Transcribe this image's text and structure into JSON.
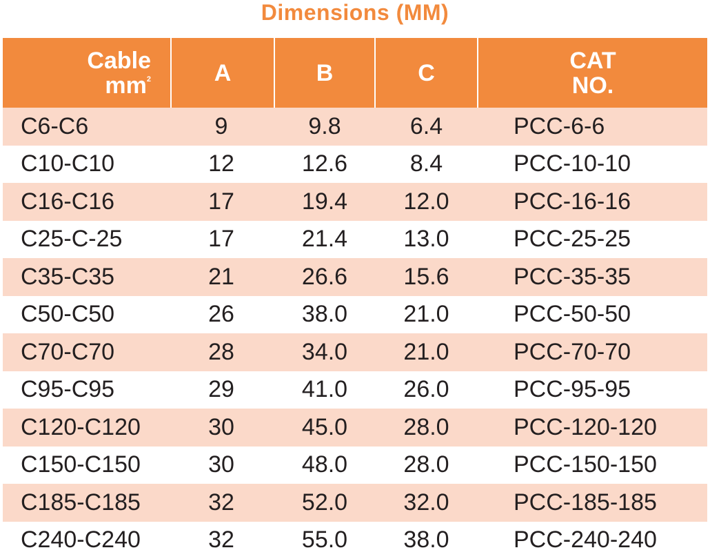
{
  "title": "Dimensions (MM)",
  "accent_color": "#f28a3d",
  "shaded_row_color": "#fbd9c9",
  "header": {
    "cable_line1": "Cable",
    "cable_line2": "mm",
    "cable_sup": "2",
    "a": "A",
    "b": "B",
    "c": "C",
    "cat_line1": "CAT",
    "cat_line2": "NO."
  },
  "rows": [
    {
      "cable": "C6-C6",
      "a": "9",
      "b": "9.8",
      "c": "6.4",
      "cat": "PCC-6-6"
    },
    {
      "cable": "C10-C10",
      "a": "12",
      "b": "12.6",
      "c": "8.4",
      "cat": "PCC-10-10"
    },
    {
      "cable": "C16-C16",
      "a": "17",
      "b": "19.4",
      "c": "12.0",
      "cat": "PCC-16-16"
    },
    {
      "cable": "C25-C-25",
      "a": "17",
      "b": "21.4",
      "c": "13.0",
      "cat": "PCC-25-25"
    },
    {
      "cable": "C35-C35",
      "a": "21",
      "b": "26.6",
      "c": "15.6",
      "cat": "PCC-35-35"
    },
    {
      "cable": "C50-C50",
      "a": "26",
      "b": "38.0",
      "c": "21.0",
      "cat": "PCC-50-50"
    },
    {
      "cable": "C70-C70",
      "a": "28",
      "b": "34.0",
      "c": "21.0",
      "cat": "PCC-70-70"
    },
    {
      "cable": "C95-C95",
      "a": "29",
      "b": "41.0",
      "c": "26.0",
      "cat": "PCC-95-95"
    },
    {
      "cable": "C120-C120",
      "a": "30",
      "b": "45.0",
      "c": "28.0",
      "cat": "PCC-120-120"
    },
    {
      "cable": "C150-C150",
      "a": "30",
      "b": "48.0",
      "c": "28.0",
      "cat": "PCC-150-150"
    },
    {
      "cable": "C185-C185",
      "a": "32",
      "b": "52.0",
      "c": "32.0",
      "cat": "PCC-185-185"
    },
    {
      "cable": "C240-C240",
      "a": "32",
      "b": "55.0",
      "c": "38.0",
      "cat": "PCC-240-240"
    }
  ]
}
